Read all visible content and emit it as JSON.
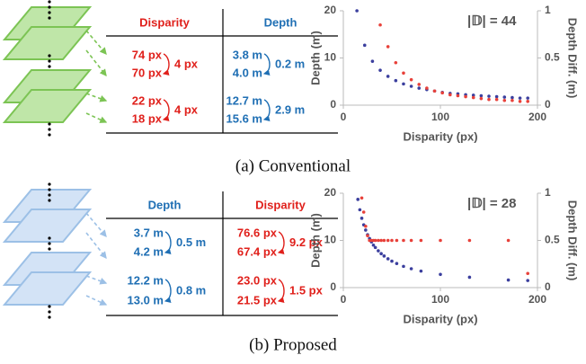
{
  "panels": [
    {
      "caption": "(a) Conventional",
      "table": {
        "headers": [
          "Disparity",
          "Depth"
        ],
        "groups": [
          {
            "cells": [
              [
                "74 px",
                "70 px",
                "4 px"
              ],
              [
                "3.8 m",
                "4.0 m",
                "0.2 m"
              ]
            ]
          },
          {
            "cells": [
              [
                "22 px",
                "18 px",
                "4 px"
              ],
              [
                "12.7 m",
                "15.6 m",
                "2.9 m"
              ]
            ]
          }
        ]
      }
    },
    {
      "caption": "(b) Proposed",
      "table": {
        "headers": [
          "Depth",
          "Disparity"
        ],
        "groups": [
          {
            "cells": [
              [
                "3.7 m",
                "4.2 m",
                "0.5 m"
              ],
              [
                "76.6 px",
                "67.4 px",
                "9.2 px"
              ]
            ]
          },
          {
            "cells": [
              [
                "12.2 m",
                "13.0 m",
                "0.8 m"
              ],
              [
                "23.0 px",
                "21.5 px",
                "1.5 px"
              ]
            ]
          }
        ]
      }
    }
  ],
  "chart_data": [
    {
      "type": "scatter",
      "annotation": "|𝔻| = 44",
      "x_label": "Disparity (px)",
      "y_label": "Depth (m)",
      "y2_label": "Depth Diff. (m)",
      "x": [
        14,
        22,
        30,
        38,
        46,
        54,
        62,
        70,
        78,
        86,
        94,
        102,
        110,
        118,
        126,
        134,
        142,
        150,
        158,
        166,
        174,
        182,
        190
      ],
      "series": [
        {
          "color": "#3b3f9e",
          "values": [
            20,
            12.7,
            9.3,
            7.4,
            6.1,
            5.2,
            4.5,
            4.0,
            3.6,
            3.3,
            3.0,
            2.7,
            2.5,
            2.4,
            2.2,
            2.1,
            2.0,
            1.9,
            1.8,
            1.7,
            1.6,
            1.5,
            1.5
          ]
        },
        {
          "color": "#e8413a",
          "axis": "y2",
          "values": [
            null,
            null,
            null,
            0.85,
            0.62,
            0.45,
            0.34,
            0.27,
            0.22,
            0.18,
            0.15,
            0.13,
            0.11,
            0.1,
            0.09,
            0.08,
            0.07,
            0.06,
            0.06,
            0.05,
            0.05,
            0.04,
            0.04
          ]
        }
      ],
      "xlim": [
        0,
        200
      ],
      "ylim": [
        0,
        20
      ],
      "y2lim": [
        0,
        1
      ],
      "xticks": [
        0,
        100,
        200
      ],
      "yticks": [
        0,
        10,
        20
      ],
      "y2ticks": [
        0,
        0.5,
        1
      ]
    },
    {
      "type": "scatter",
      "annotation": "|𝔻| = 28",
      "x_label": "Disparity (px)",
      "y_label": "Depth (m)",
      "y2_label": "Depth Diff. (m)",
      "x": [
        15,
        17,
        19,
        21,
        23,
        25,
        27,
        29,
        31,
        33,
        36,
        39,
        42,
        46,
        50,
        55,
        62,
        70,
        80,
        100,
        130,
        170,
        190
      ],
      "series": [
        {
          "color": "#3b3f9e",
          "values": [
            18.7,
            16.5,
            14.7,
            13.3,
            12.2,
            11.2,
            10.4,
            9.7,
            9.0,
            8.5,
            7.8,
            7.2,
            6.7,
            6.1,
            5.6,
            5.1,
            4.5,
            4.0,
            3.5,
            2.8,
            2.2,
            1.6,
            1.5
          ]
        },
        {
          "color": "#e8413a",
          "axis": "y2",
          "values": [
            null,
            null,
            0.95,
            0.8,
            0.65,
            0.55,
            0.5,
            0.5,
            0.5,
            0.5,
            0.5,
            0.5,
            0.5,
            0.5,
            0.5,
            0.5,
            0.5,
            0.5,
            0.5,
            0.5,
            0.5,
            0.5,
            0.15
          ]
        }
      ],
      "xlim": [
        0,
        200
      ],
      "ylim": [
        0,
        20
      ],
      "y2lim": [
        0,
        1
      ],
      "xticks": [
        0,
        100,
        200
      ],
      "yticks": [
        0,
        10,
        20
      ],
      "y2ticks": [
        0,
        0.5,
        1
      ]
    }
  ]
}
